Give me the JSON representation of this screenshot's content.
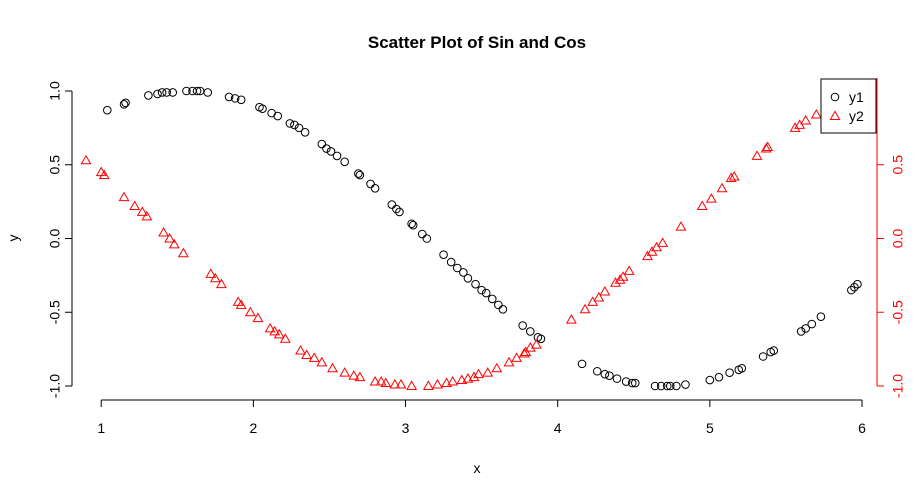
{
  "chart_data": {
    "type": "scatter",
    "title": "Scatter Plot of Sin and Cos",
    "xlabel": "x",
    "ylabel": "y",
    "xlim": [
      0.9,
      6.0
    ],
    "ylim": [
      -1.0,
      1.0
    ],
    "xticks": [
      1,
      2,
      3,
      4,
      5,
      6
    ],
    "yticks_left": [
      1.0,
      0.5,
      0.0,
      -0.5,
      -1.0
    ],
    "ytick_left_labels": [
      "1.0",
      "0.5",
      "0.0",
      "-0.5",
      "-1.0"
    ],
    "yticks_right": [
      0.5,
      0.0,
      -0.5,
      -1.0
    ],
    "ytick_right_labels": [
      "0.5",
      "0.0",
      "-0.5",
      "-1.0"
    ],
    "right_axis_color": "#ff0000",
    "grid": false,
    "legend": {
      "position": "top-right",
      "entries": [
        {
          "label": "y1",
          "marker": "circle",
          "color": "#000000"
        },
        {
          "label": "y2",
          "marker": "triangle",
          "color": "#ff0000"
        }
      ]
    },
    "series": [
      {
        "name": "y1",
        "marker": "circle",
        "color": "#000000",
        "points": [
          [
            1.04,
            0.87
          ],
          [
            1.15,
            0.91
          ],
          [
            1.16,
            0.92
          ],
          [
            1.31,
            0.97
          ],
          [
            1.37,
            0.98
          ],
          [
            1.4,
            0.99
          ],
          [
            1.43,
            0.99
          ],
          [
            1.47,
            0.99
          ],
          [
            1.56,
            1.0
          ],
          [
            1.6,
            1.0
          ],
          [
            1.63,
            1.0
          ],
          [
            1.65,
            1.0
          ],
          [
            1.7,
            0.99
          ],
          [
            1.84,
            0.96
          ],
          [
            1.88,
            0.95
          ],
          [
            1.92,
            0.94
          ],
          [
            2.04,
            0.89
          ],
          [
            2.06,
            0.88
          ],
          [
            2.12,
            0.85
          ],
          [
            2.16,
            0.83
          ],
          [
            2.24,
            0.78
          ],
          [
            2.27,
            0.77
          ],
          [
            2.3,
            0.75
          ],
          [
            2.34,
            0.72
          ],
          [
            2.45,
            0.64
          ],
          [
            2.48,
            0.61
          ],
          [
            2.51,
            0.59
          ],
          [
            2.55,
            0.56
          ],
          [
            2.6,
            0.52
          ],
          [
            2.69,
            0.44
          ],
          [
            2.7,
            0.43
          ],
          [
            2.77,
            0.37
          ],
          [
            2.8,
            0.34
          ],
          [
            2.91,
            0.23
          ],
          [
            2.94,
            0.2
          ],
          [
            2.96,
            0.18
          ],
          [
            3.04,
            0.1
          ],
          [
            3.05,
            0.09
          ],
          [
            3.11,
            0.03
          ],
          [
            3.14,
            0.0
          ],
          [
            3.25,
            -0.11
          ],
          [
            3.3,
            -0.16
          ],
          [
            3.34,
            -0.2
          ],
          [
            3.38,
            -0.23
          ],
          [
            3.41,
            -0.27
          ],
          [
            3.46,
            -0.31
          ],
          [
            3.5,
            -0.35
          ],
          [
            3.53,
            -0.37
          ],
          [
            3.57,
            -0.41
          ],
          [
            3.61,
            -0.45
          ],
          [
            3.64,
            -0.48
          ],
          [
            3.77,
            -0.59
          ],
          [
            3.82,
            -0.63
          ],
          [
            3.87,
            -0.67
          ],
          [
            3.89,
            -0.68
          ],
          [
            4.16,
            -0.85
          ],
          [
            4.26,
            -0.9
          ],
          [
            4.31,
            -0.92
          ],
          [
            4.34,
            -0.93
          ],
          [
            4.39,
            -0.95
          ],
          [
            4.45,
            -0.97
          ],
          [
            4.49,
            -0.98
          ],
          [
            4.51,
            -0.98
          ],
          [
            4.64,
            -1.0
          ],
          [
            4.68,
            -1.0
          ],
          [
            4.72,
            -1.0
          ],
          [
            4.74,
            -1.0
          ],
          [
            4.78,
            -1.0
          ],
          [
            4.84,
            -0.99
          ],
          [
            5.0,
            -0.96
          ],
          [
            5.06,
            -0.94
          ],
          [
            5.13,
            -0.91
          ],
          [
            5.19,
            -0.89
          ],
          [
            5.21,
            -0.88
          ],
          [
            5.35,
            -0.8
          ],
          [
            5.4,
            -0.77
          ],
          [
            5.42,
            -0.76
          ],
          [
            5.6,
            -0.63
          ],
          [
            5.63,
            -0.61
          ],
          [
            5.67,
            -0.58
          ],
          [
            5.73,
            -0.53
          ],
          [
            5.93,
            -0.35
          ],
          [
            5.95,
            -0.33
          ],
          [
            5.97,
            -0.31
          ]
        ]
      },
      {
        "name": "y2",
        "marker": "triangle",
        "color": "#ff0000",
        "points": [
          [
            0.9,
            0.53
          ],
          [
            1.0,
            0.45
          ],
          [
            1.02,
            0.43
          ],
          [
            1.15,
            0.28
          ],
          [
            1.22,
            0.22
          ],
          [
            1.27,
            0.18
          ],
          [
            1.3,
            0.15
          ],
          [
            1.41,
            0.04
          ],
          [
            1.45,
            0.0
          ],
          [
            1.48,
            -0.04
          ],
          [
            1.54,
            -0.1
          ],
          [
            1.72,
            -0.24
          ],
          [
            1.75,
            -0.27
          ],
          [
            1.79,
            -0.31
          ],
          [
            1.9,
            -0.43
          ],
          [
            1.92,
            -0.45
          ],
          [
            1.98,
            -0.5
          ],
          [
            2.03,
            -0.54
          ],
          [
            2.11,
            -0.61
          ],
          [
            2.14,
            -0.63
          ],
          [
            2.17,
            -0.65
          ],
          [
            2.21,
            -0.68
          ],
          [
            2.31,
            -0.76
          ],
          [
            2.35,
            -0.79
          ],
          [
            2.4,
            -0.81
          ],
          [
            2.45,
            -0.84
          ],
          [
            2.52,
            -0.88
          ],
          [
            2.6,
            -0.91
          ],
          [
            2.66,
            -0.93
          ],
          [
            2.7,
            -0.94
          ],
          [
            2.8,
            -0.97
          ],
          [
            2.84,
            -0.97
          ],
          [
            2.87,
            -0.98
          ],
          [
            2.93,
            -0.99
          ],
          [
            2.97,
            -0.99
          ],
          [
            3.04,
            -1.0
          ],
          [
            3.15,
            -1.0
          ],
          [
            3.21,
            -0.99
          ],
          [
            3.27,
            -0.98
          ],
          [
            3.31,
            -0.97
          ],
          [
            3.37,
            -0.96
          ],
          [
            3.41,
            -0.95
          ],
          [
            3.45,
            -0.94
          ],
          [
            3.48,
            -0.92
          ],
          [
            3.54,
            -0.91
          ],
          [
            3.6,
            -0.88
          ],
          [
            3.68,
            -0.84
          ],
          [
            3.73,
            -0.81
          ],
          [
            3.78,
            -0.78
          ],
          [
            3.79,
            -0.77
          ],
          [
            3.82,
            -0.74
          ],
          [
            3.86,
            -0.72
          ],
          [
            4.09,
            -0.55
          ],
          [
            4.18,
            -0.48
          ],
          [
            4.23,
            -0.43
          ],
          [
            4.27,
            -0.4
          ],
          [
            4.31,
            -0.36
          ],
          [
            4.38,
            -0.3
          ],
          [
            4.41,
            -0.28
          ],
          [
            4.43,
            -0.26
          ],
          [
            4.47,
            -0.22
          ],
          [
            4.59,
            -0.12
          ],
          [
            4.62,
            -0.09
          ],
          [
            4.65,
            -0.06
          ],
          [
            4.69,
            -0.03
          ],
          [
            4.81,
            0.08
          ],
          [
            4.95,
            0.22
          ],
          [
            5.01,
            0.27
          ],
          [
            5.08,
            0.34
          ],
          [
            5.14,
            0.41
          ],
          [
            5.16,
            0.42
          ],
          [
            5.31,
            0.56
          ],
          [
            5.37,
            0.61
          ],
          [
            5.38,
            0.62
          ],
          [
            5.56,
            0.75
          ],
          [
            5.59,
            0.77
          ],
          [
            5.63,
            0.8
          ],
          [
            5.7,
            0.84
          ]
        ]
      }
    ]
  }
}
